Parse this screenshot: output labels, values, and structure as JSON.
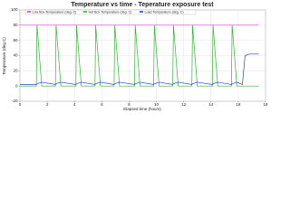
{
  "chart_data": {
    "type": "line",
    "title": "Temperature vs time - Teperature exposure test",
    "x_label": "Elapsed time (hours)",
    "y_label": "Temperature (deg C)",
    "x": [
      0,
      1.2,
      1.25,
      1.6,
      2.6,
      2.65,
      3.0,
      4.1,
      4.15,
      4.5,
      5.5,
      5.55,
      5.9,
      6.9,
      6.95,
      7.3,
      8.4,
      8.45,
      8.8,
      9.8,
      9.85,
      10.2,
      11.2,
      11.25,
      11.6,
      12.6,
      12.65,
      13.0,
      14.1,
      14.15,
      14.5,
      15.5,
      15.55,
      15.9,
      16.3,
      16.5,
      16.8,
      17.5
    ],
    "series": [
      {
        "name": "Low Box Temperature (deg. C)",
        "color": "#d63fd6",
        "values": [
          80,
          80,
          80,
          80,
          80,
          80,
          80,
          80,
          80,
          80,
          80,
          80,
          80,
          80,
          80,
          80,
          80,
          80,
          80,
          80,
          80,
          80,
          80,
          80,
          80,
          80,
          80,
          80,
          80,
          80,
          80,
          80,
          80,
          80,
          80,
          80,
          80,
          80
        ]
      },
      {
        "name": "Hot Box Temperature (deg. C)",
        "color": "#2fb52f",
        "values": [
          0,
          0,
          80,
          0,
          0,
          80,
          0,
          0,
          80,
          0,
          0,
          80,
          0,
          0,
          80,
          0,
          0,
          80,
          0,
          0,
          80,
          0,
          0,
          80,
          0,
          0,
          80,
          0,
          0,
          80,
          0,
          0,
          80,
          0,
          0,
          0,
          0,
          0
        ]
      },
      {
        "name": "Load Temperature (deg. C)",
        "color": "#2a3fd0",
        "values": [
          2,
          2,
          3,
          5,
          2,
          3,
          5,
          2,
          3,
          5,
          2,
          3,
          5,
          2,
          3,
          5,
          2,
          3,
          5,
          2,
          3,
          5,
          2,
          3,
          5,
          2,
          3,
          5,
          2,
          3,
          5,
          2,
          3,
          5,
          2,
          40,
          42,
          42
        ]
      }
    ],
    "xlim": [
      0,
      18
    ],
    "xticks": [
      0,
      2,
      4,
      6,
      8,
      10,
      12,
      14,
      16,
      18
    ],
    "ylim": [
      -20,
      100
    ],
    "yticks": [
      -20,
      0,
      20,
      40,
      60,
      80,
      100
    ],
    "grid": true
  }
}
